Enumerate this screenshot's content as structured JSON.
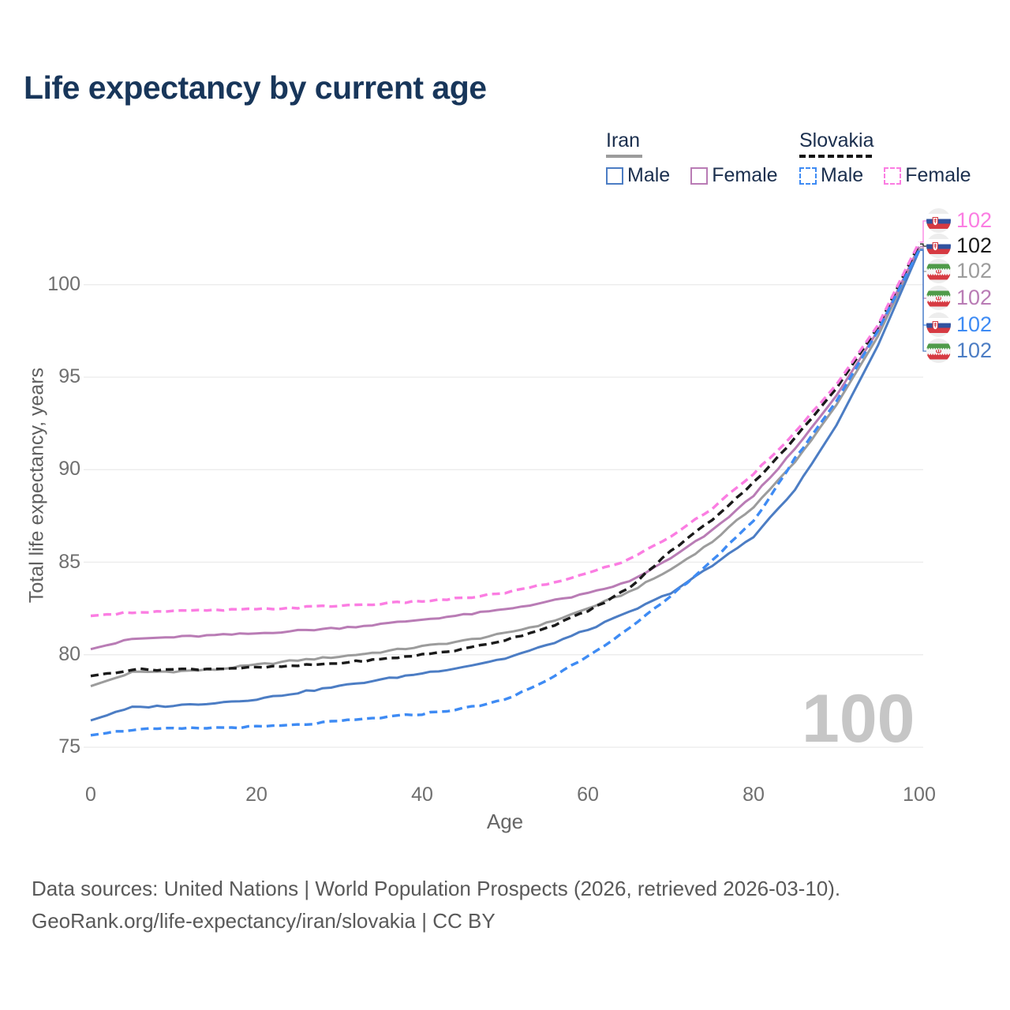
{
  "title": "Life expectancy by current age",
  "legend": {
    "groups": [
      {
        "country": "Iran",
        "line_style": "solid",
        "underline_color": "#9c9c9c",
        "items": [
          {
            "label": "Male",
            "color": "#4c7dc4",
            "dashed": false
          },
          {
            "label": "Female",
            "color": "#b97cb5",
            "dashed": false
          }
        ]
      },
      {
        "country": "Slovakia",
        "line_style": "dashed",
        "underline_color": "#141414",
        "items": [
          {
            "label": "Male",
            "color": "#3e8bf4",
            "dashed": true
          },
          {
            "label": "Female",
            "color": "#fb7de2",
            "dashed": true
          }
        ]
      }
    ]
  },
  "y_axis": {
    "title": "Total life expectancy, years",
    "ticks": [
      75,
      80,
      85,
      90,
      95,
      100
    ]
  },
  "x_axis": {
    "title": "Age",
    "ticks": [
      0,
      20,
      40,
      60,
      80,
      100
    ]
  },
  "watermark": "100",
  "end_labels": [
    {
      "value": "102",
      "flag": "slovakia",
      "series": "Slovakia Female",
      "color": "#fb7de2",
      "series_index": 5
    },
    {
      "value": "102",
      "flag": "slovakia",
      "series": "Slovakia Total",
      "color": "#1a1a1a",
      "series_index": 3
    },
    {
      "value": "102",
      "flag": "iran",
      "series": "Iran Total",
      "color": "#9c9c9c",
      "series_index": 0
    },
    {
      "value": "102",
      "flag": "iran",
      "series": "Iran Female",
      "color": "#b97cb5",
      "series_index": 1
    },
    {
      "value": "102",
      "flag": "slovakia",
      "series": "Slovakia Male",
      "color": "#3e8bf4",
      "series_index": 4
    },
    {
      "value": "102",
      "flag": "iran",
      "series": "Iran Male",
      "color": "#4c7dc4",
      "series_index": 2
    }
  ],
  "footer": {
    "line1": "Data sources: United Nations | World Population Prospects (2026, retrieved 2026-03-10).",
    "line2": "GeoRank.org/life-expectancy/iran/slovakia | CC BY"
  },
  "chart_data": {
    "type": "line",
    "xlabel": "Age",
    "ylabel": "Total life expectancy, years",
    "x": [
      0,
      5,
      10,
      15,
      20,
      25,
      30,
      35,
      40,
      45,
      50,
      55,
      60,
      65,
      70,
      75,
      80,
      85,
      90,
      95,
      100
    ],
    "ylim": [
      73.5,
      103.5
    ],
    "xlim": [
      0,
      100
    ],
    "grid": true,
    "legend_position": "top-right",
    "series": [
      {
        "name": "Iran Total",
        "country": "Iran",
        "style": "solid",
        "color": "#9c9c9c",
        "values": [
          78.3,
          79.05,
          79.1,
          79.2,
          79.45,
          79.7,
          79.9,
          80.15,
          80.45,
          80.75,
          81.15,
          81.7,
          82.5,
          83.4,
          84.6,
          86.1,
          88.0,
          90.4,
          93.5,
          97.2,
          101.95
        ]
      },
      {
        "name": "Iran Female",
        "country": "Iran",
        "style": "solid",
        "color": "#b97cb5",
        "values": [
          80.3,
          80.85,
          80.95,
          81.05,
          81.15,
          81.3,
          81.45,
          81.65,
          81.9,
          82.15,
          82.45,
          82.85,
          83.3,
          83.95,
          85.2,
          86.7,
          88.6,
          91.1,
          94.0,
          97.5,
          102.05
        ]
      },
      {
        "name": "Iran Male",
        "country": "Iran",
        "style": "solid",
        "color": "#4c7dc4",
        "values": [
          76.45,
          77.15,
          77.25,
          77.4,
          77.6,
          77.95,
          78.3,
          78.65,
          79.0,
          79.35,
          79.8,
          80.5,
          81.35,
          82.3,
          83.35,
          84.8,
          86.4,
          88.9,
          92.4,
          96.7,
          101.85
        ]
      },
      {
        "name": "Slovakia Total",
        "country": "Slovakia",
        "style": "dashed",
        "color": "#1a1a1a",
        "values": [
          78.85,
          79.2,
          79.2,
          79.25,
          79.3,
          79.4,
          79.55,
          79.75,
          80.0,
          80.3,
          80.8,
          81.45,
          82.35,
          83.6,
          85.6,
          87.3,
          89.3,
          91.7,
          94.4,
          97.7,
          102.2
        ]
      },
      {
        "name": "Slovakia Male",
        "country": "Slovakia",
        "style": "dashed",
        "color": "#3e8bf4",
        "values": [
          75.65,
          75.95,
          76.0,
          76.05,
          76.1,
          76.2,
          76.4,
          76.6,
          76.8,
          77.1,
          77.55,
          78.6,
          79.95,
          81.4,
          83.15,
          85.1,
          87.2,
          90.6,
          93.7,
          97.5,
          101.9
        ]
      },
      {
        "name": "Slovakia Female",
        "country": "Slovakia",
        "style": "dashed",
        "color": "#fb7de2",
        "values": [
          82.1,
          82.3,
          82.35,
          82.4,
          82.45,
          82.55,
          82.65,
          82.75,
          82.9,
          83.05,
          83.35,
          83.8,
          84.4,
          85.15,
          86.4,
          87.9,
          89.8,
          92.0,
          94.6,
          97.8,
          102.3
        ]
      }
    ]
  }
}
